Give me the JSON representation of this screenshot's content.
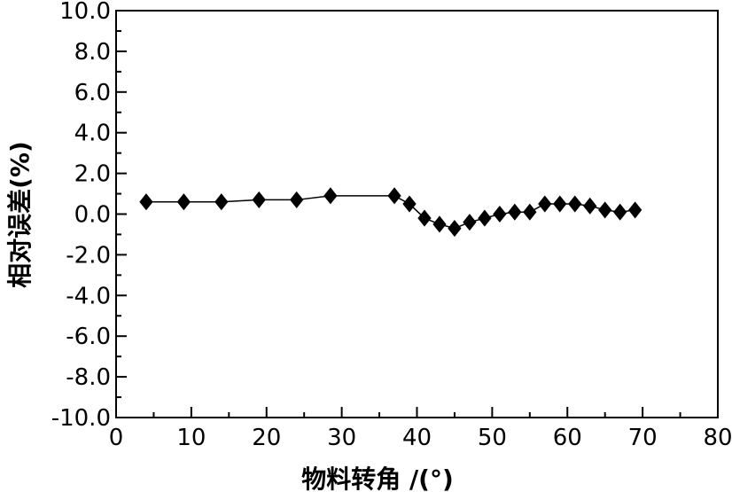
{
  "chart_data": {
    "type": "line",
    "title": "",
    "xlabel": "物料转角 /(°)",
    "ylabel": "相对误差(%)",
    "xlim": [
      0,
      80
    ],
    "ylim": [
      -10,
      10
    ],
    "x_ticks": [
      0,
      10,
      20,
      30,
      40,
      50,
      60,
      70,
      80
    ],
    "x_tick_labels": [
      "0",
      "10",
      "20",
      "30",
      "40",
      "50",
      "60",
      "70",
      "80"
    ],
    "y_ticks": [
      10,
      8,
      6,
      4,
      2,
      0,
      -2,
      -4,
      -6,
      -8,
      -10
    ],
    "y_tick_labels": [
      "10.0",
      "8.0",
      "6.0",
      "4.0",
      "2.0",
      "0.0",
      "-2.0",
      "-4.0",
      "-6.0",
      "-8.0",
      "-10.0"
    ],
    "grid": false,
    "marker": "diamond",
    "colors": {
      "line": "#000000",
      "marker": "#000000",
      "axis": "#000000"
    },
    "series": [
      {
        "x": [
          4,
          9,
          14,
          19,
          24,
          28.5,
          37,
          39,
          41,
          43,
          45,
          47,
          49,
          51,
          53,
          55,
          57,
          59,
          61,
          63,
          65,
          67,
          69
        ],
        "y": [
          0.6,
          0.6,
          0.6,
          0.7,
          0.7,
          0.9,
          0.9,
          0.5,
          -0.2,
          -0.5,
          -0.7,
          -0.4,
          -0.2,
          0.0,
          0.1,
          0.1,
          0.5,
          0.5,
          0.5,
          0.4,
          0.2,
          0.1,
          0.2
        ]
      }
    ]
  }
}
